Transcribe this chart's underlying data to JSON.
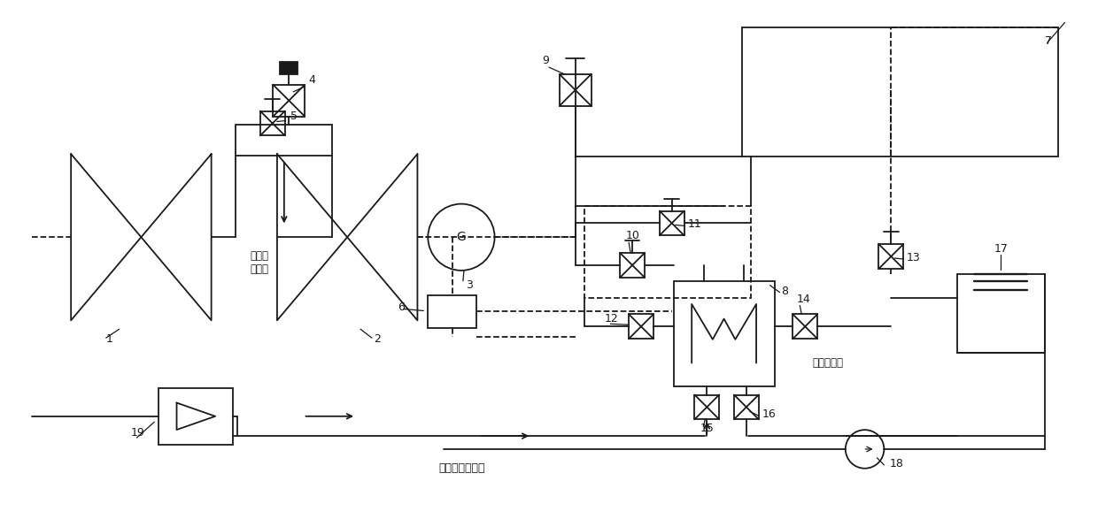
{
  "bg_color": "#ffffff",
  "line_color": "#1a1a1a",
  "fig_width": 12.4,
  "fig_height": 5.87,
  "dpi": 100,
  "labels": [
    "1",
    "2",
    "3",
    "4",
    "5",
    "6",
    "7",
    "8",
    "9",
    "10",
    "11",
    "12",
    "13",
    "14",
    "15",
    "16",
    "17",
    "18",
    "19"
  ],
  "text_duiwai": "对外抜\n汽供热",
  "text_fujilengque": "辅机冷却水系统",
  "text_choukonqqi": "抜空气设备",
  "G_label": "G",
  "lw": 1.3,
  "lw_thin": 0.9
}
